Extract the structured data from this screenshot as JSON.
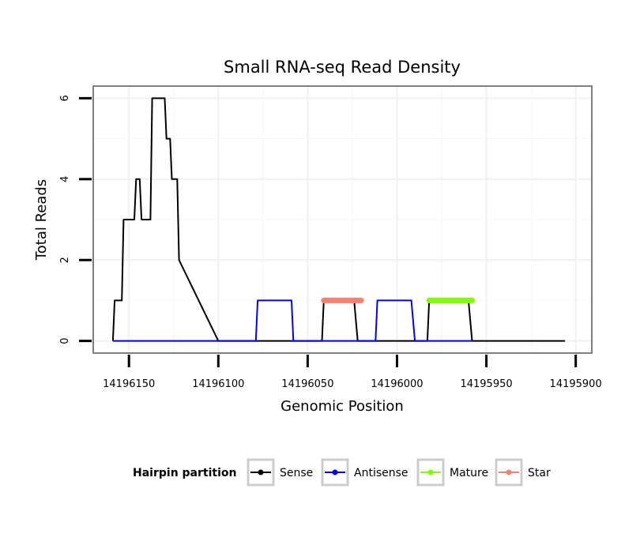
{
  "chart_data": {
    "type": "line",
    "title": "Small RNA-seq Read Density",
    "xlabel": "Genomic Position",
    "ylabel": "Total Reads",
    "xlim": [
      14196170,
      14195891
    ],
    "ylim": [
      -0.3,
      6.3
    ],
    "x_ticks": [
      14196150,
      14196100,
      14196050,
      14196000,
      14195950,
      14195900
    ],
    "y_ticks": [
      0,
      2,
      4,
      6
    ],
    "grid": true,
    "legend_position": "bottom",
    "legend_title": "Hairpin partition",
    "colors": {
      "sense": "#000000",
      "antisense": "#0000ff",
      "mature": "#7fff00",
      "star": "#fa8072"
    },
    "series": [
      {
        "name": "Sense",
        "color": "#000000",
        "width": 2,
        "points": [
          [
            14196159,
            0
          ],
          [
            14196158,
            1
          ],
          [
            14196154,
            1
          ],
          [
            14196153,
            3
          ],
          [
            14196147,
            3
          ],
          [
            14196146,
            4
          ],
          [
            14196144,
            4
          ],
          [
            14196143,
            3
          ],
          [
            14196138,
            3
          ],
          [
            14196137,
            6
          ],
          [
            14196130,
            6
          ],
          [
            14196129,
            5
          ],
          [
            14196127,
            5
          ],
          [
            14196126,
            4
          ],
          [
            14196123,
            4
          ],
          [
            14196122,
            2
          ],
          [
            14196100,
            0
          ],
          [
            14196042,
            0
          ],
          [
            14196041,
            1
          ],
          [
            14196024,
            1
          ],
          [
            14196022,
            0
          ],
          [
            14196017,
            0
          ],
          [
            14195983,
            0
          ],
          [
            14195982,
            1
          ],
          [
            14195960,
            1
          ],
          [
            14195958,
            0
          ],
          [
            14195906,
            0
          ]
        ]
      },
      {
        "name": "Antisense",
        "color": "#0000ff",
        "width": 2,
        "points": [
          [
            14196159,
            0
          ],
          [
            14196079,
            0
          ],
          [
            14196078,
            1
          ],
          [
            14196059,
            1
          ],
          [
            14196058,
            0
          ],
          [
            14196059,
            0
          ],
          [
            14196012,
            0
          ],
          [
            14196011,
            1
          ],
          [
            14195992,
            1
          ],
          [
            14195990,
            0
          ],
          [
            14195958,
            0
          ]
        ]
      },
      {
        "name": "Mature",
        "color": "#7fff00",
        "width": 7,
        "points": [
          [
            14195982,
            1
          ],
          [
            14195958,
            1
          ]
        ]
      },
      {
        "name": "Star",
        "color": "#fa8072",
        "width": 7,
        "points": [
          [
            14196041,
            1
          ],
          [
            14196020,
            1
          ]
        ]
      }
    ]
  }
}
